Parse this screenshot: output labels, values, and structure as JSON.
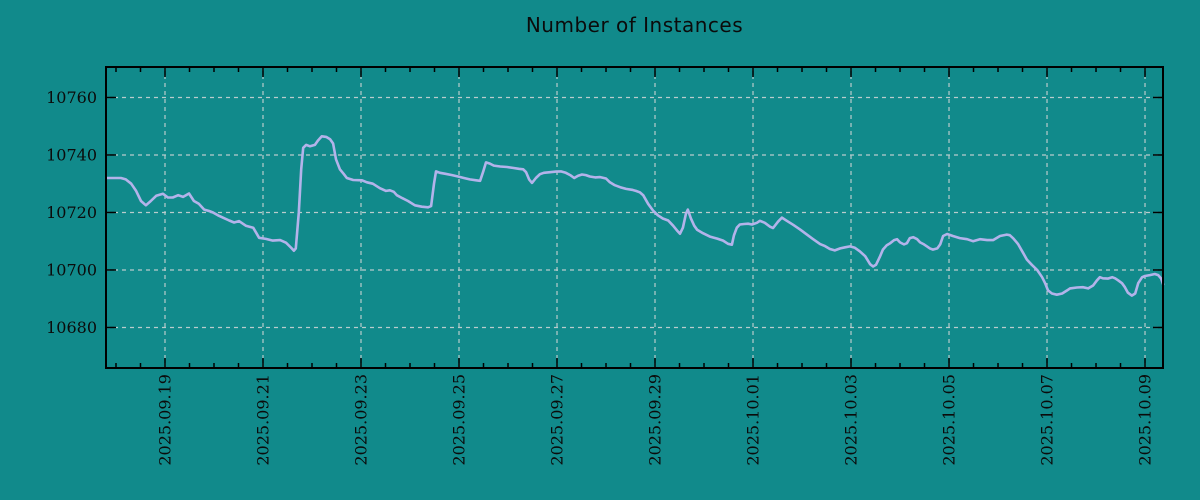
{
  "title": "Number of Instances",
  "colors": {
    "background": "#118a8b",
    "line": "#b3b3ea",
    "grid": "#b9cccc",
    "axis": "#000000",
    "text": "#0b0b0b"
  },
  "chart_data": {
    "type": "line",
    "title": "Number of Instances",
    "xlabel": "",
    "ylabel": "",
    "x_unit": "days since 2025-09-19 00:00",
    "xlim": [
      -1.204,
      20.367
    ],
    "ylim": [
      10665.9,
      10770.6
    ],
    "grid": true,
    "legend": false,
    "y_ticks": [
      10680,
      10700,
      10720,
      10740,
      10760
    ],
    "x_major_ticks": [
      {
        "x": 0,
        "label": "2025.09.19"
      },
      {
        "x": 2,
        "label": "2025.09.21"
      },
      {
        "x": 4,
        "label": "2025.09.23"
      },
      {
        "x": 6,
        "label": "2025.09.25"
      },
      {
        "x": 8,
        "label": "2025.09.27"
      },
      {
        "x": 10,
        "label": "2025.09.29"
      },
      {
        "x": 12,
        "label": "2025.10.01"
      },
      {
        "x": 14,
        "label": "2025.10.03"
      },
      {
        "x": 16,
        "label": "2025.10.05"
      },
      {
        "x": 18,
        "label": "2025.10.07"
      },
      {
        "x": 20,
        "label": "2025.10.09"
      }
    ],
    "x_minor_step": 0.5,
    "series": [
      {
        "name": "instances",
        "color": "#b3b3ea",
        "points": [
          [
            -1.2,
            10732
          ],
          [
            -0.9,
            10732
          ],
          [
            -0.8,
            10731.5
          ],
          [
            -0.69,
            10730
          ],
          [
            -0.59,
            10727.5
          ],
          [
            -0.49,
            10724
          ],
          [
            -0.39,
            10722.5
          ],
          [
            -0.29,
            10724
          ],
          [
            -0.18,
            10725.8
          ],
          [
            -0.04,
            10726.5
          ],
          [
            0.06,
            10725.2
          ],
          [
            0.16,
            10725.2
          ],
          [
            0.27,
            10726
          ],
          [
            0.37,
            10725.4
          ],
          [
            0.49,
            10726.6
          ],
          [
            0.59,
            10724
          ],
          [
            0.69,
            10723
          ],
          [
            0.8,
            10721
          ],
          [
            0.9,
            10720.5
          ],
          [
            0.98,
            10720
          ],
          [
            1.08,
            10719
          ],
          [
            1.18,
            10718.2
          ],
          [
            1.31,
            10717.2
          ],
          [
            1.41,
            10716.5
          ],
          [
            1.51,
            10717
          ],
          [
            1.65,
            10715.4
          ],
          [
            1.8,
            10714.7
          ],
          [
            1.92,
            10711.2
          ],
          [
            2.06,
            10710.8
          ],
          [
            2.2,
            10710.2
          ],
          [
            2.35,
            10710.4
          ],
          [
            2.47,
            10709.5
          ],
          [
            2.57,
            10707.8
          ],
          [
            2.63,
            10706.7
          ],
          [
            2.67,
            10707.5
          ],
          [
            2.73,
            10720
          ],
          [
            2.78,
            10735
          ],
          [
            2.82,
            10742.5
          ],
          [
            2.88,
            10743.5
          ],
          [
            2.96,
            10743
          ],
          [
            3.06,
            10743.5
          ],
          [
            3.12,
            10745
          ],
          [
            3.2,
            10746.5
          ],
          [
            3.29,
            10746.3
          ],
          [
            3.37,
            10745.5
          ],
          [
            3.43,
            10744
          ],
          [
            3.49,
            10738.5
          ],
          [
            3.57,
            10735
          ],
          [
            3.65,
            10733.3
          ],
          [
            3.71,
            10732
          ],
          [
            3.84,
            10731.3
          ],
          [
            4.02,
            10731.2
          ],
          [
            4.12,
            10730.5
          ],
          [
            4.24,
            10730
          ],
          [
            4.39,
            10728.4
          ],
          [
            4.51,
            10727.5
          ],
          [
            4.59,
            10727.7
          ],
          [
            4.67,
            10727.2
          ],
          [
            4.73,
            10726
          ],
          [
            4.84,
            10725
          ],
          [
            4.96,
            10724
          ],
          [
            5.1,
            10722.5
          ],
          [
            5.24,
            10722
          ],
          [
            5.37,
            10721.8
          ],
          [
            5.43,
            10722.2
          ],
          [
            5.49,
            10730
          ],
          [
            5.53,
            10734.3
          ],
          [
            5.61,
            10733.8
          ],
          [
            5.71,
            10733.5
          ],
          [
            5.86,
            10733
          ],
          [
            5.98,
            10732.5
          ],
          [
            6.1,
            10732
          ],
          [
            6.22,
            10731.5
          ],
          [
            6.35,
            10731.2
          ],
          [
            6.43,
            10731
          ],
          [
            6.49,
            10734
          ],
          [
            6.55,
            10737.4
          ],
          [
            6.63,
            10737
          ],
          [
            6.71,
            10736.3
          ],
          [
            6.84,
            10736
          ],
          [
            6.98,
            10735.8
          ],
          [
            7.1,
            10735.5
          ],
          [
            7.22,
            10735.2
          ],
          [
            7.31,
            10735
          ],
          [
            7.37,
            10734
          ],
          [
            7.43,
            10731.5
          ],
          [
            7.49,
            10730.3
          ],
          [
            7.57,
            10732
          ],
          [
            7.65,
            10733.3
          ],
          [
            7.73,
            10733.8
          ],
          [
            7.86,
            10734
          ],
          [
            7.98,
            10734.2
          ],
          [
            8.08,
            10734.3
          ],
          [
            8.18,
            10733.8
          ],
          [
            8.27,
            10733
          ],
          [
            8.35,
            10732
          ],
          [
            8.43,
            10732.8
          ],
          [
            8.51,
            10733.2
          ],
          [
            8.59,
            10733
          ],
          [
            8.67,
            10732.5
          ],
          [
            8.78,
            10732.2
          ],
          [
            8.88,
            10732.3
          ],
          [
            9.0,
            10731.8
          ],
          [
            9.08,
            10730.5
          ],
          [
            9.18,
            10729.5
          ],
          [
            9.29,
            10728.8
          ],
          [
            9.41,
            10728.2
          ],
          [
            9.53,
            10727.9
          ],
          [
            9.61,
            10727.5
          ],
          [
            9.69,
            10727
          ],
          [
            9.76,
            10726
          ],
          [
            9.86,
            10723
          ],
          [
            9.96,
            10720.7
          ],
          [
            10.06,
            10719
          ],
          [
            10.16,
            10717.9
          ],
          [
            10.27,
            10717.2
          ],
          [
            10.37,
            10715.4
          ],
          [
            10.45,
            10713.7
          ],
          [
            10.51,
            10712.6
          ],
          [
            10.57,
            10714.7
          ],
          [
            10.63,
            10719.5
          ],
          [
            10.67,
            10721
          ],
          [
            10.73,
            10718
          ],
          [
            10.8,
            10715.4
          ],
          [
            10.86,
            10714
          ],
          [
            10.98,
            10712.8
          ],
          [
            11.12,
            10711.6
          ],
          [
            11.27,
            10710.9
          ],
          [
            11.39,
            10710.2
          ],
          [
            11.49,
            10709.1
          ],
          [
            11.57,
            10708.8
          ],
          [
            11.61,
            10712
          ],
          [
            11.67,
            10714.7
          ],
          [
            11.73,
            10715.8
          ],
          [
            11.82,
            10716
          ],
          [
            11.9,
            10716.1
          ],
          [
            11.98,
            10715.8
          ],
          [
            12.08,
            10716.4
          ],
          [
            12.14,
            10717.1
          ],
          [
            12.24,
            10716.4
          ],
          [
            12.35,
            10715
          ],
          [
            12.41,
            10714.6
          ],
          [
            12.51,
            10716.8
          ],
          [
            12.59,
            10718.2
          ],
          [
            12.69,
            10717.1
          ],
          [
            12.82,
            10715.7
          ],
          [
            12.96,
            10714.1
          ],
          [
            13.1,
            10712.3
          ],
          [
            13.22,
            10710.8
          ],
          [
            13.37,
            10709
          ],
          [
            13.47,
            10708.3
          ],
          [
            13.57,
            10707.3
          ],
          [
            13.67,
            10706.8
          ],
          [
            13.78,
            10707.5
          ],
          [
            13.88,
            10707.9
          ],
          [
            13.98,
            10708.2
          ],
          [
            14.08,
            10707.7
          ],
          [
            14.18,
            10706.5
          ],
          [
            14.29,
            10704.8
          ],
          [
            14.39,
            10702
          ],
          [
            14.45,
            10701.2
          ],
          [
            14.51,
            10701.8
          ],
          [
            14.59,
            10704.6
          ],
          [
            14.65,
            10707.1
          ],
          [
            14.73,
            10708.6
          ],
          [
            14.8,
            10709.3
          ],
          [
            14.88,
            10710.4
          ],
          [
            14.94,
            10710.7
          ],
          [
            15.0,
            10709.6
          ],
          [
            15.08,
            10708.9
          ],
          [
            15.14,
            10709.3
          ],
          [
            15.2,
            10711.1
          ],
          [
            15.27,
            10711.4
          ],
          [
            15.35,
            10710.7
          ],
          [
            15.41,
            10709.6
          ],
          [
            15.49,
            10708.9
          ],
          [
            15.55,
            10708.2
          ],
          [
            15.61,
            10707.5
          ],
          [
            15.67,
            10707.1
          ],
          [
            15.76,
            10707.5
          ],
          [
            15.82,
            10708.9
          ],
          [
            15.88,
            10711.8
          ],
          [
            15.96,
            10712.5
          ],
          [
            16.08,
            10711.8
          ],
          [
            16.22,
            10711.1
          ],
          [
            16.37,
            10710.7
          ],
          [
            16.49,
            10710
          ],
          [
            16.63,
            10710.7
          ],
          [
            16.78,
            10710.4
          ],
          [
            16.9,
            10710.4
          ],
          [
            17.04,
            10711.8
          ],
          [
            17.18,
            10712.3
          ],
          [
            17.24,
            10712.1
          ],
          [
            17.31,
            10711
          ],
          [
            17.41,
            10709
          ],
          [
            17.51,
            10706
          ],
          [
            17.59,
            10703.6
          ],
          [
            17.69,
            10701.8
          ],
          [
            17.8,
            10700
          ],
          [
            17.9,
            10697.5
          ],
          [
            17.96,
            10695.4
          ],
          [
            18.02,
            10692.9
          ],
          [
            18.1,
            10691.8
          ],
          [
            18.2,
            10691.4
          ],
          [
            18.31,
            10691.8
          ],
          [
            18.41,
            10692.9
          ],
          [
            18.47,
            10693.6
          ],
          [
            18.61,
            10693.9
          ],
          [
            18.73,
            10694
          ],
          [
            18.84,
            10693.6
          ],
          [
            18.94,
            10694.6
          ],
          [
            19.02,
            10696.4
          ],
          [
            19.08,
            10697.5
          ],
          [
            19.14,
            10697.1
          ],
          [
            19.24,
            10697
          ],
          [
            19.33,
            10697.5
          ],
          [
            19.39,
            10697.1
          ],
          [
            19.45,
            10696.4
          ],
          [
            19.53,
            10695.4
          ],
          [
            19.59,
            10694
          ],
          [
            19.65,
            10692.1
          ],
          [
            19.73,
            10691.1
          ],
          [
            19.8,
            10691.8
          ],
          [
            19.86,
            10695.4
          ],
          [
            19.94,
            10697.5
          ],
          [
            20.0,
            10697.9
          ],
          [
            20.1,
            10698.2
          ],
          [
            20.2,
            10698.6
          ],
          [
            20.27,
            10698.2
          ],
          [
            20.33,
            10697
          ],
          [
            20.37,
            10695
          ]
        ]
      }
    ]
  }
}
